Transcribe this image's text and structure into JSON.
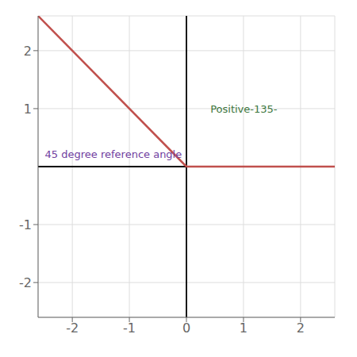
{
  "chart_data": {
    "type": "line",
    "xlim": [
      -2.6,
      2.6
    ],
    "ylim": [
      -2.6,
      2.6
    ],
    "xticks": [
      -2,
      -1,
      0,
      1,
      2
    ],
    "yticks": [
      -2,
      -1,
      1,
      2
    ],
    "grid": true,
    "series": [
      {
        "color": "#c0504d",
        "x": [
          -2.6,
          0
        ],
        "values": [
          2.6,
          0
        ]
      },
      {
        "color": "#c0504d",
        "x": [
          0,
          2.6
        ],
        "values": [
          0,
          0
        ]
      }
    ],
    "annotations": [
      {
        "text": "Positive‐135‐",
        "x": 0.35,
        "y": 1.0,
        "color": "#3c763d"
      },
      {
        "text": "45 degree reference angle",
        "x": -2.55,
        "y": 0.22,
        "color": "#7040a0"
      }
    ]
  }
}
